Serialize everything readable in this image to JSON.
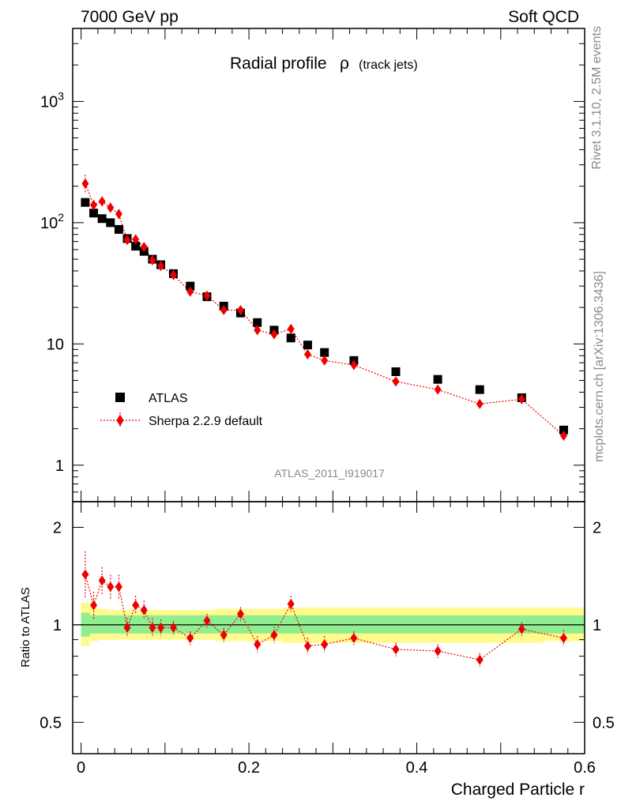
{
  "header": {
    "left": "7000 GeV pp",
    "right": "Soft QCD"
  },
  "side": {
    "rivet": "Rivet 3.1.10,  2.5M events",
    "mcplots": "mcplots.cern.ch [arXiv:1306.3436]"
  },
  "chart_data": [
    {
      "type": "scatter",
      "title": "Radial profile",
      "title_symbol": "ρ",
      "title_suffix": "(track jets)",
      "analysis_tag": "ATLAS_2011_I919017",
      "xlabel": "Charged Particle r",
      "ylabel": "",
      "xlim": [
        -0.01,
        0.6
      ],
      "ylim": [
        0.5,
        4000
      ],
      "yscale": "log",
      "y_ticks": [
        {
          "value": 1000,
          "base": "10",
          "exp": "3"
        },
        {
          "value": 100,
          "base": "10",
          "exp": "2"
        },
        {
          "value": 10,
          "base": "10",
          "exp": ""
        },
        {
          "value": 1,
          "base": "1",
          "exp": ""
        }
      ],
      "legend": {
        "position": "bottom-left"
      },
      "series": [
        {
          "name": "ATLAS",
          "color": "#000000",
          "marker": "square",
          "x": [
            0.005,
            0.015,
            0.025,
            0.035,
            0.045,
            0.055,
            0.065,
            0.075,
            0.085,
            0.095,
            0.11,
            0.13,
            0.15,
            0.17,
            0.19,
            0.21,
            0.23,
            0.25,
            0.27,
            0.29,
            0.325,
            0.375,
            0.425,
            0.475,
            0.525,
            0.575
          ],
          "y": [
            147,
            120,
            108,
            100,
            88,
            74,
            64,
            58,
            50,
            45,
            38,
            30,
            24.5,
            20.5,
            18,
            15,
            13,
            11.2,
            9.8,
            8.5,
            7.3,
            5.9,
            5.1,
            4.2,
            3.6,
            1.95
          ]
        },
        {
          "name": "Sherpa 2.2.9 default",
          "color": "#ee0000",
          "marker": "diamond",
          "line": "dotted",
          "x": [
            0.005,
            0.015,
            0.025,
            0.035,
            0.045,
            0.055,
            0.065,
            0.075,
            0.085,
            0.095,
            0.11,
            0.13,
            0.15,
            0.17,
            0.19,
            0.21,
            0.23,
            0.25,
            0.27,
            0.29,
            0.325,
            0.375,
            0.425,
            0.475,
            0.525,
            0.575
          ],
          "y": [
            210,
            140,
            150,
            133,
            118,
            72,
            73,
            63,
            49,
            44,
            37,
            27,
            25,
            19,
            19,
            13,
            12,
            13.3,
            8.2,
            7.3,
            6.7,
            4.9,
            4.2,
            3.2,
            3.5,
            1.75
          ],
          "yerr": [
            0.18,
            0.1,
            0.1,
            0.1,
            0.1,
            0.08,
            0.08,
            0.07,
            0.07,
            0.07,
            0.06,
            0.06,
            0.06,
            0.06,
            0.06,
            0.07,
            0.07,
            0.07,
            0.07,
            0.07,
            0.06,
            0.06,
            0.06,
            0.06,
            0.06,
            0.08
          ]
        }
      ]
    },
    {
      "type": "scatter",
      "title": "",
      "xlabel": "Charged Particle r",
      "ylabel": "Ratio to ATLAS",
      "xlim": [
        -0.01,
        0.6
      ],
      "ylim": [
        0.4,
        2.4
      ],
      "yscale": "log",
      "x_ticks": [
        "0",
        "0.2",
        "0.4",
        "0.6"
      ],
      "x_tick_values": [
        0,
        0.2,
        0.4,
        0.6
      ],
      "y_ticks": [
        "0.5",
        "1",
        "2"
      ],
      "y_tick_values": [
        0.5,
        1,
        2
      ],
      "reference_line": 1,
      "uncertainty_bands": {
        "stat_color": "#90ee90",
        "total_color": "#fffa8c",
        "x_edges": [
          0,
          0.01,
          0.02,
          0.03,
          0.04,
          0.05,
          0.06,
          0.07,
          0.08,
          0.09,
          0.1,
          0.12,
          0.14,
          0.16,
          0.18,
          0.2,
          0.22,
          0.24,
          0.26,
          0.28,
          0.3,
          0.35,
          0.4,
          0.45,
          0.5,
          0.55,
          0.6
        ],
        "total_lo": [
          0.86,
          0.89,
          0.9,
          0.9,
          0.9,
          0.9,
          0.9,
          0.9,
          0.9,
          0.9,
          0.9,
          0.9,
          0.9,
          0.89,
          0.89,
          0.89,
          0.89,
          0.88,
          0.88,
          0.88,
          0.88,
          0.88,
          0.88,
          0.88,
          0.88,
          0.89
        ],
        "total_hi": [
          1.17,
          1.13,
          1.12,
          1.11,
          1.11,
          1.11,
          1.11,
          1.11,
          1.11,
          1.11,
          1.11,
          1.11,
          1.11,
          1.12,
          1.12,
          1.12,
          1.12,
          1.13,
          1.13,
          1.13,
          1.13,
          1.13,
          1.13,
          1.13,
          1.13,
          1.13
        ],
        "stat_lo": [
          0.92,
          0.94,
          0.94,
          0.94,
          0.94,
          0.94,
          0.94,
          0.94,
          0.94,
          0.94,
          0.94,
          0.94,
          0.94,
          0.94,
          0.94,
          0.94,
          0.94,
          0.94,
          0.94,
          0.94,
          0.94,
          0.94,
          0.94,
          0.94,
          0.94,
          0.94
        ],
        "stat_hi": [
          1.09,
          1.07,
          1.07,
          1.07,
          1.07,
          1.07,
          1.07,
          1.07,
          1.07,
          1.07,
          1.07,
          1.07,
          1.07,
          1.07,
          1.07,
          1.07,
          1.07,
          1.07,
          1.07,
          1.07,
          1.07,
          1.07,
          1.07,
          1.07,
          1.07,
          1.07
        ]
      },
      "series": [
        {
          "name": "Sherpa 2.2.9 default",
          "color": "#ee0000",
          "marker": "diamond",
          "line": "dotted",
          "x": [
            0.005,
            0.015,
            0.025,
            0.035,
            0.045,
            0.055,
            0.065,
            0.075,
            0.085,
            0.095,
            0.11,
            0.13,
            0.15,
            0.17,
            0.19,
            0.21,
            0.23,
            0.25,
            0.27,
            0.29,
            0.325,
            0.375,
            0.425,
            0.475,
            0.525,
            0.575
          ],
          "y": [
            1.43,
            1.15,
            1.37,
            1.31,
            1.31,
            0.98,
            1.15,
            1.11,
            0.98,
            0.98,
            0.98,
            0.91,
            1.03,
            0.93,
            1.08,
            0.87,
            0.93,
            1.16,
            0.86,
            0.87,
            0.91,
            0.84,
            0.83,
            0.78,
            0.97,
            0.91
          ],
          "yerr": [
            0.18,
            0.1,
            0.1,
            0.09,
            0.09,
            0.07,
            0.07,
            0.07,
            0.07,
            0.06,
            0.05,
            0.05,
            0.05,
            0.05,
            0.05,
            0.06,
            0.06,
            0.06,
            0.06,
            0.06,
            0.05,
            0.05,
            0.05,
            0.05,
            0.05,
            0.06
          ]
        }
      ]
    }
  ]
}
